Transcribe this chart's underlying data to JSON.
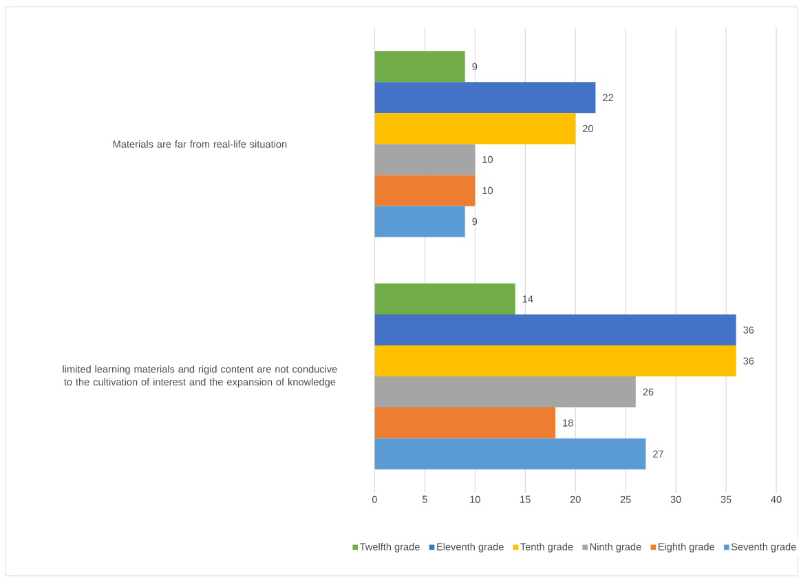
{
  "chart_data": {
    "type": "bar",
    "orientation": "horizontal",
    "categories": [
      "Materials are far from real-life situation",
      "limited learning materials and rigid content are not conducive to the cultivation of interest and the expansion of knowledge"
    ],
    "series": [
      {
        "name": "Twelfth grade",
        "color": "#70ad47",
        "values": [
          9,
          14
        ]
      },
      {
        "name": "Eleventh grade",
        "color": "#4472c4",
        "values": [
          22,
          36
        ]
      },
      {
        "name": "Tenth grade",
        "color": "#ffc000",
        "values": [
          20,
          36
        ]
      },
      {
        "name": "Ninth grade",
        "color": "#a5a5a5",
        "values": [
          10,
          26
        ]
      },
      {
        "name": "Eighth grade",
        "color": "#ed7d31",
        "values": [
          10,
          18
        ]
      },
      {
        "name": "Seventh grade",
        "color": "#5b9bd5",
        "values": [
          9,
          27
        ]
      }
    ],
    "xlim": [
      0,
      40
    ],
    "xticks": [
      0,
      5,
      10,
      15,
      20,
      25,
      30,
      35,
      40
    ],
    "grid": "x",
    "legend": "bottom",
    "data_labels": true
  }
}
